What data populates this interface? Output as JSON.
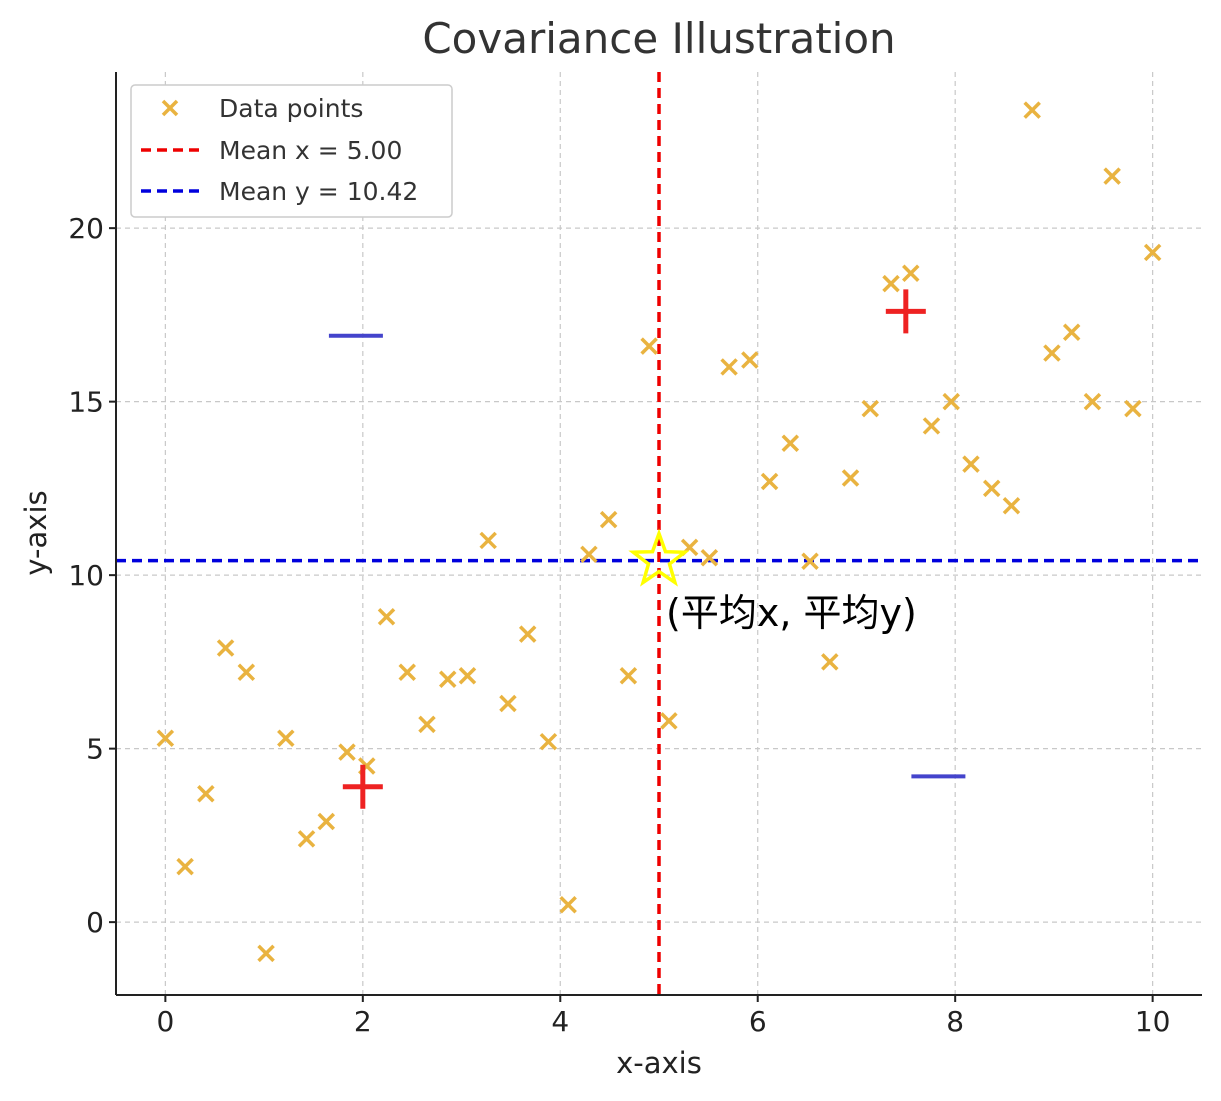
{
  "chart_data": {
    "type": "scatter",
    "title": "Covariance Illustration",
    "xlabel": "x-axis",
    "ylabel": "y-axis",
    "xlim": [
      -0.5,
      10.5
    ],
    "ylim": [
      -2.1,
      24.5
    ],
    "xticks": [
      0,
      2,
      4,
      6,
      8,
      10
    ],
    "yticks": [
      0,
      5,
      10,
      15,
      20
    ],
    "grid": true,
    "legend_position": "top-left",
    "series": [
      {
        "name": "Data points",
        "marker": "x",
        "color": "#E9B340",
        "x": [
          0.0,
          0.2,
          0.41,
          0.61,
          0.82,
          1.02,
          1.22,
          1.43,
          1.63,
          1.84,
          2.04,
          2.24,
          2.45,
          2.65,
          2.86,
          3.06,
          3.27,
          3.47,
          3.67,
          3.88,
          4.08,
          4.29,
          4.49,
          4.69,
          4.9,
          5.1,
          5.31,
          5.51,
          5.71,
          5.92,
          6.12,
          6.33,
          6.53,
          6.73,
          6.94,
          7.14,
          7.35,
          7.55,
          7.76,
          7.96,
          8.16,
          8.37,
          8.57,
          8.78,
          8.98,
          9.18,
          9.39,
          9.59,
          9.8,
          10.0
        ],
        "y": [
          5.3,
          1.6,
          3.7,
          7.9,
          7.2,
          -0.9,
          5.3,
          2.4,
          2.9,
          4.9,
          4.5,
          8.8,
          7.2,
          5.7,
          7.0,
          7.1,
          11.0,
          6.3,
          8.3,
          5.2,
          0.5,
          10.6,
          11.6,
          7.1,
          16.6,
          5.8,
          10.8,
          10.5,
          16.0,
          16.2,
          12.7,
          13.8,
          10.4,
          7.5,
          12.8,
          14.8,
          18.4,
          18.7,
          14.3,
          15.0,
          13.2,
          12.5,
          12.0,
          23.4,
          16.4,
          17.0,
          15.0,
          21.5,
          14.8,
          19.3
        ]
      }
    ],
    "lines": [
      {
        "name": "Mean x = 5.00",
        "orientation": "vertical",
        "value": 5.0,
        "color": "#EE0000",
        "style": "dashed"
      },
      {
        "name": "Mean y = 10.42",
        "orientation": "horizontal",
        "value": 10.42,
        "color": "#0000DD",
        "style": "dashed"
      }
    ],
    "mean_point": {
      "x": 5.0,
      "y": 10.42,
      "marker": "star",
      "color": "#FFFF00",
      "label": "(平均x, 平均y)"
    },
    "quadrant_signs": [
      {
        "sign": "+",
        "x": 7.5,
        "y": 17.6,
        "color": "#EE2222"
      },
      {
        "sign": "+",
        "x": 2.0,
        "y": 3.9,
        "color": "#EE2222"
      },
      {
        "sign": "−",
        "x": 1.93,
        "y": 16.9,
        "color": "#4444CC"
      },
      {
        "sign": "−",
        "x": 7.83,
        "y": 4.2,
        "color": "#4444CC"
      }
    ]
  }
}
